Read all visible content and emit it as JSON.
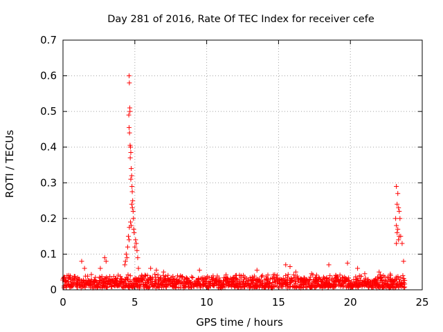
{
  "chart_data": {
    "type": "scatter",
    "title": "Day 281 of 2016, Rate Of TEC Index for receiver cefe",
    "xlabel": "GPS time / hours",
    "ylabel": "ROTI / TECUs",
    "xlim": [
      0,
      25
    ],
    "ylim": [
      0,
      0.7
    ],
    "xticks": [
      0,
      5,
      10,
      15,
      20,
      25
    ],
    "yticks": [
      0,
      0.1,
      0.2,
      0.3,
      0.4,
      0.5,
      0.6,
      0.7
    ],
    "grid": true,
    "marker": "+",
    "color": "#ff0000",
    "series": [
      {
        "name": "ROTI",
        "points": [
          [
            4.6,
            0.6
          ],
          [
            4.62,
            0.58
          ],
          [
            4.65,
            0.51
          ],
          [
            4.58,
            0.49
          ],
          [
            4.66,
            0.5
          ],
          [
            4.6,
            0.455
          ],
          [
            4.63,
            0.44
          ],
          [
            4.67,
            0.405
          ],
          [
            4.7,
            0.4
          ],
          [
            4.72,
            0.385
          ],
          [
            4.68,
            0.37
          ],
          [
            4.75,
            0.34
          ],
          [
            4.78,
            0.32
          ],
          [
            4.72,
            0.31
          ],
          [
            4.8,
            0.29
          ],
          [
            4.82,
            0.275
          ],
          [
            4.85,
            0.25
          ],
          [
            4.78,
            0.24
          ],
          [
            4.83,
            0.23
          ],
          [
            4.88,
            0.22
          ],
          [
            4.9,
            0.2
          ],
          [
            4.7,
            0.19
          ],
          [
            4.75,
            0.18
          ],
          [
            4.62,
            0.175
          ],
          [
            4.92,
            0.17
          ],
          [
            4.95,
            0.16
          ],
          [
            4.55,
            0.15
          ],
          [
            4.6,
            0.14
          ],
          [
            5.05,
            0.14
          ],
          [
            5.1,
            0.13
          ],
          [
            4.5,
            0.12
          ],
          [
            5.0,
            0.12
          ],
          [
            5.15,
            0.11
          ],
          [
            4.4,
            0.1
          ],
          [
            4.45,
            0.09
          ],
          [
            4.35,
            0.08
          ],
          [
            5.2,
            0.09
          ],
          [
            4.3,
            0.07
          ],
          [
            5.25,
            0.06
          ],
          [
            23.2,
            0.29
          ],
          [
            23.3,
            0.27
          ],
          [
            23.25,
            0.24
          ],
          [
            23.35,
            0.23
          ],
          [
            23.4,
            0.22
          ],
          [
            23.15,
            0.2
          ],
          [
            23.45,
            0.2
          ],
          [
            23.2,
            0.18
          ],
          [
            23.3,
            0.17
          ],
          [
            23.25,
            0.16
          ],
          [
            23.4,
            0.15
          ],
          [
            23.5,
            0.15
          ],
          [
            23.35,
            0.14
          ],
          [
            23.2,
            0.13
          ],
          [
            23.6,
            0.13
          ],
          [
            23.7,
            0.08
          ],
          [
            23.65,
            0.04
          ],
          [
            23.72,
            0.02
          ],
          [
            1.3,
            0.08
          ],
          [
            1.5,
            0.06
          ],
          [
            2.9,
            0.09
          ],
          [
            3.0,
            0.08
          ],
          [
            2.6,
            0.06
          ],
          [
            6.1,
            0.06
          ],
          [
            6.5,
            0.055
          ],
          [
            7.0,
            0.05
          ],
          [
            9.5,
            0.055
          ],
          [
            13.5,
            0.055
          ],
          [
            15.5,
            0.07
          ],
          [
            15.8,
            0.065
          ],
          [
            16.2,
            0.05
          ],
          [
            17.3,
            0.045
          ],
          [
            18.5,
            0.07
          ],
          [
            19.8,
            0.075
          ],
          [
            20.5,
            0.06
          ],
          [
            21.0,
            0.045
          ],
          [
            22.0,
            0.05
          ],
          [
            22.8,
            0.04
          ]
        ],
        "baseline_band": {
          "x_from": 0.0,
          "x_to": 23.8,
          "y_min": 0.005,
          "y_max": 0.045
        }
      }
    ]
  }
}
